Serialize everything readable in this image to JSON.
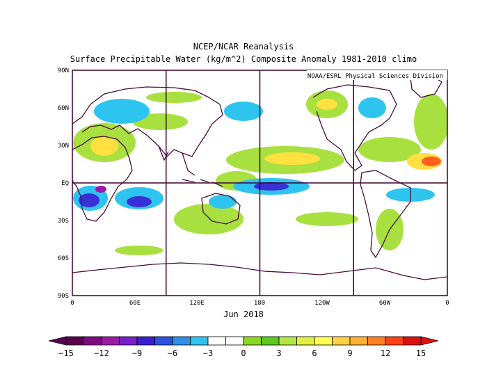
{
  "title": "NCEP/NCAR Reanalysis",
  "subtitle": "Surface Precipitable Water (kg/m^2) Composite Anomaly 1981-2010 climo",
  "credit": "NOAA/ESRL Physical Sciences Division",
  "period": "Jun 2018",
  "lat_labels": [
    "90N",
    "60N",
    "30N",
    "EQ",
    "30S",
    "60S",
    "90S"
  ],
  "lon_labels": [
    "0",
    "60E",
    "120E",
    "180",
    "120W",
    "60W",
    "0"
  ],
  "colorbar": {
    "ticks": [
      "-15",
      "-12",
      "-9",
      "-6",
      "-3",
      "0",
      "3",
      "6",
      "9",
      "12",
      "15"
    ],
    "colors": [
      "#5a0050",
      "#7e0a80",
      "#9b1aa8",
      "#7a1fc8",
      "#3a20d0",
      "#2c50e0",
      "#2f8ee8",
      "#2ec4f0",
      "#ffffff",
      "#ffffff",
      "#8ad820",
      "#5cc820",
      "#b4e640",
      "#e4f040",
      "#ffff50",
      "#ffd040",
      "#ffb030",
      "#ff8020",
      "#ff4010",
      "#e01010"
    ]
  },
  "colors": {
    "coast": "#4a0a3e",
    "frame": "#3a0030"
  }
}
